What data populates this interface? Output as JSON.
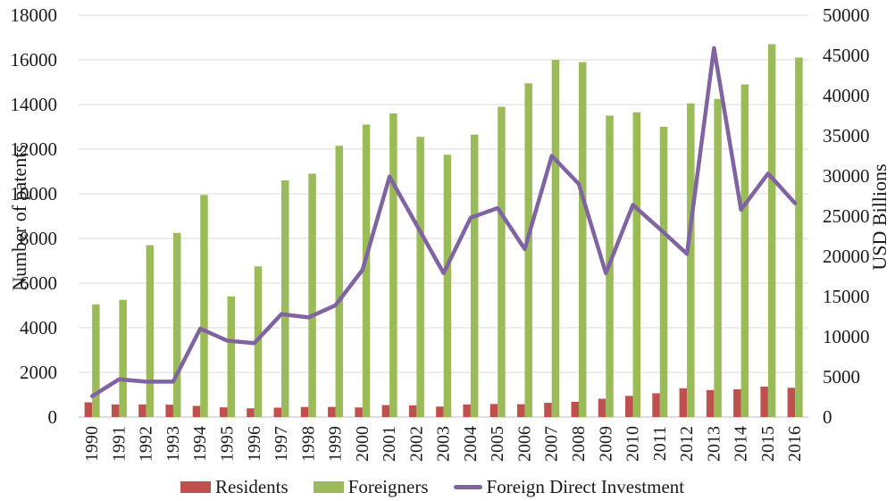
{
  "colors": {
    "residents": "#C0504D",
    "foreigners": "#9BBB59",
    "fdi": "#8064A2",
    "gridline": "#D9D9D9",
    "axis_line": "#BFBFBF",
    "text": "#1a1a1a",
    "background": "#FFFFFF"
  },
  "chart_data": {
    "type": "combo",
    "categories": [
      "1990",
      "1991",
      "1992",
      "1993",
      "1994",
      "1995",
      "1996",
      "1997",
      "1998",
      "1999",
      "2000",
      "2001",
      "2002",
      "2003",
      "2004",
      "2005",
      "2006",
      "2007",
      "2008",
      "2009",
      "2010",
      "2011",
      "2012",
      "2013",
      "2014",
      "2015",
      "2016"
    ],
    "series": [
      {
        "name": "Residents",
        "type": "bar",
        "axis": "left",
        "color": "#C0504D",
        "values": [
          660,
          565,
          565,
          555,
          500,
          435,
          390,
          420,
          450,
          455,
          430,
          535,
          525,
          470,
          565,
          585,
          575,
          640,
          685,
          820,
          950,
          1065,
          1290,
          1210,
          1245,
          1365,
          1310
        ]
      },
      {
        "name": "Foreigners",
        "type": "bar",
        "axis": "left",
        "color": "#9BBB59",
        "values": [
          5050,
          5250,
          7700,
          8250,
          9950,
          5400,
          6750,
          10600,
          10900,
          12150,
          13100,
          13600,
          12550,
          11750,
          12650,
          13900,
          14950,
          16000,
          15900,
          13500,
          13650,
          13000,
          14050,
          14250,
          14900,
          16700,
          16100
        ]
      },
      {
        "name": "Foreign Direct Investment",
        "type": "line",
        "axis": "right",
        "color": "#8064A2",
        "values": [
          2600,
          4700,
          4400,
          4400,
          11000,
          9500,
          9200,
          12800,
          12400,
          13900,
          18300,
          29900,
          23900,
          17900,
          24800,
          26000,
          20900,
          32500,
          29000,
          17900,
          26400,
          23400,
          20300,
          45900,
          25800,
          30300,
          26600
        ]
      }
    ],
    "left_axis": {
      "min": 0,
      "max": 18000,
      "step": 2000,
      "title": "Number of patents"
    },
    "right_axis": {
      "min": 0,
      "max": 50000,
      "step": 5000,
      "title": "USD Billions"
    },
    "grid": true,
    "legend_position": "bottom"
  }
}
